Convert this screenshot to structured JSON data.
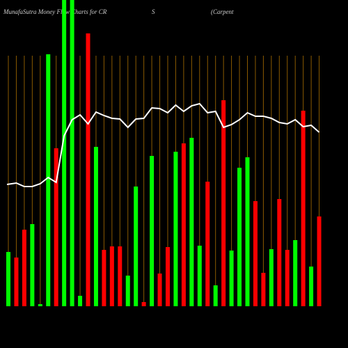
{
  "chart_data": {
    "type": "bar",
    "title_parts": [
      "MunafaSutra  Money Flow  Charts for CR",
      "S",
      "(Carpent"
    ],
    "categories": [
      null,
      null,
      null,
      null,
      null,
      null,
      null,
      null,
      null,
      null,
      null,
      null,
      null,
      null,
      null,
      null,
      null,
      null,
      null,
      null,
      null,
      null,
      null,
      null,
      null,
      null,
      null,
      null,
      null,
      null,
      null,
      null,
      null,
      null,
      null,
      null,
      null,
      null,
      null,
      null
    ],
    "values": [
      78,
      70,
      110,
      118,
      3,
      362,
      227,
      440,
      440,
      15,
      392,
      229,
      81,
      86,
      86,
      44,
      172,
      6,
      216,
      47,
      85,
      222,
      234,
      242,
      87,
      179,
      30,
      296,
      80,
      199,
      214,
      151,
      48,
      82,
      154,
      81,
      95,
      281,
      57,
      129
    ],
    "colors": [
      "#00ff00",
      "#ff0000",
      "#ff0000",
      "#00ff00",
      "#00ff00",
      "#00ff00",
      "#ff0000",
      "#00ff00",
      "#00ff00",
      "#00ff00",
      "#ff0000",
      "#00ff00",
      "#ff0000",
      "#ff0000",
      "#ff0000",
      "#00ff00",
      "#00ff00",
      "#ff0000",
      "#00ff00",
      "#ff0000",
      "#ff0000",
      "#00ff00",
      "#ff0000",
      "#00ff00",
      "#00ff00",
      "#ff0000",
      "#00ff00",
      "#ff0000",
      "#00ff00",
      "#00ff00",
      "#00ff00",
      "#ff0000",
      "#ff0000",
      "#00ff00",
      "#ff0000",
      "#ff0000",
      "#00ff00",
      "#ff0000",
      "#00ff00",
      "#ff0000"
    ],
    "line_values": [
      175,
      177,
      172,
      172,
      176,
      185,
      178,
      245,
      268,
      275,
      262,
      279,
      274,
      270,
      269,
      257,
      269,
      270,
      285,
      284,
      278,
      289,
      280,
      288,
      291,
      278,
      280,
      257,
      261,
      268,
      278,
      273,
      273,
      270,
      264,
      262,
      268,
      258,
      260,
      250
    ],
    "line_color": "#ffffff",
    "ylim": [
      0,
      440
    ]
  }
}
